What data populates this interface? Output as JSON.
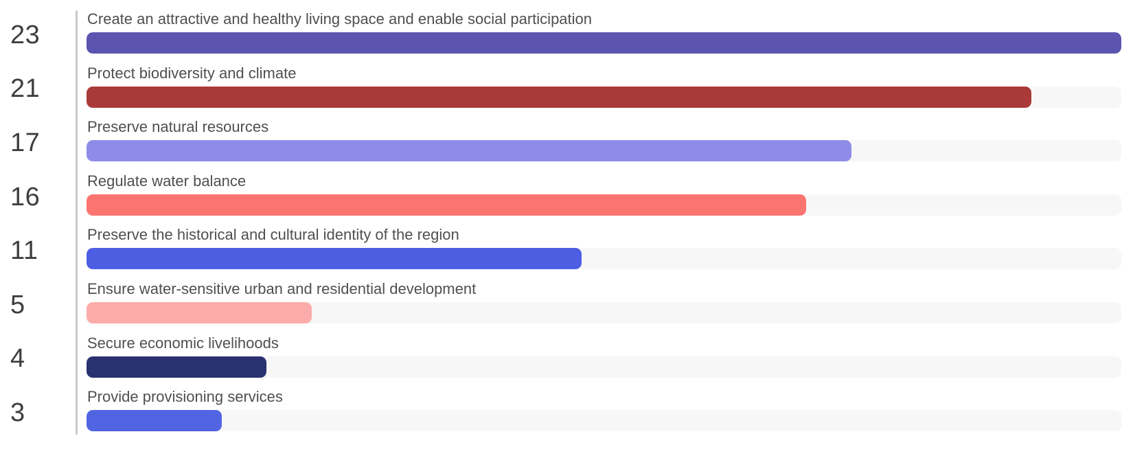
{
  "chart_data": {
    "type": "bar",
    "orientation": "horizontal",
    "title": "",
    "xlabel": "",
    "ylabel": "",
    "grid": false,
    "legend": "none",
    "value_axis_side": "left",
    "value_range": [
      0,
      23
    ],
    "max_value": 23,
    "track_color": "#f7f7f7",
    "axis_line_color": "#c9c9c9",
    "label_color": "#4f4f4f",
    "value_text_color": "#3e3e3e",
    "background_color": "#ffffff",
    "categories": [
      "Create an attractive and healthy living space and enable social participation",
      "Protect biodiversity and climate",
      "Preserve natural resources",
      "Regulate water balance",
      "Preserve the historical and cultural identity of the region",
      "Ensure water-sensitive urban and residential development",
      "Secure economic livelihoods",
      "Provide provisioning services"
    ],
    "values": [
      23,
      21,
      17,
      16,
      11,
      5,
      4,
      3
    ],
    "items": [
      {
        "label": "Create an attractive and healthy living space and enable social participation",
        "value": 23,
        "color": "#5b55b0"
      },
      {
        "label": "Protect biodiversity and climate",
        "value": 21,
        "color": "#a93a38"
      },
      {
        "label": "Preserve natural resources",
        "value": 17,
        "color": "#8f8ce8"
      },
      {
        "label": "Regulate water balance",
        "value": 16,
        "color": "#fb746f"
      },
      {
        "label": "Preserve the historical and cultural identity of the region",
        "value": 11,
        "color": "#4e5ee3"
      },
      {
        "label": "Ensure water-sensitive urban and residential development",
        "value": 5,
        "color": "#fbacaa"
      },
      {
        "label": "Secure economic livelihoods",
        "value": 4,
        "color": "#2a3170"
      },
      {
        "label": "Provide provisioning services",
        "value": 3,
        "color": "#5164e2"
      }
    ]
  }
}
